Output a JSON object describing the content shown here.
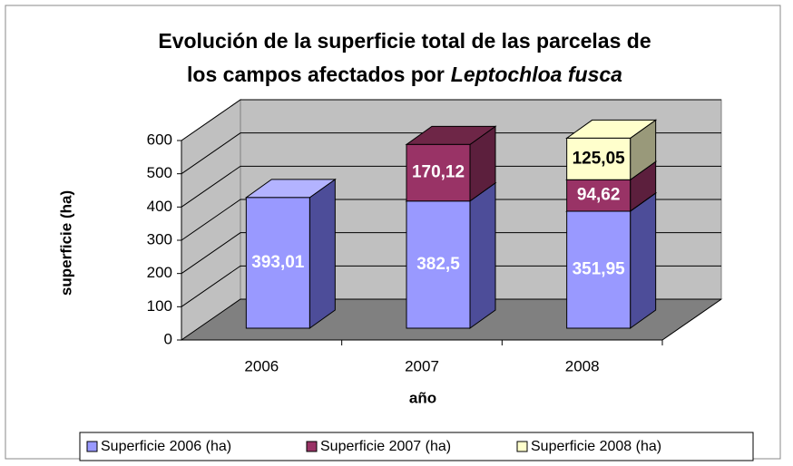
{
  "chart_data": {
    "type": "bar3d_stacked",
    "title_lines": [
      "Evolución de la superficie total de las parcelas de",
      "los campos afectados por",
      "Leptochloa fusca"
    ],
    "xlabel": "año",
    "ylabel": "superficie (ha)",
    "categories": [
      "2006",
      "2007",
      "2008"
    ],
    "series": [
      {
        "name": "Superficie 2006 (ha)",
        "color": "#9999ff",
        "side": "#4d4d99",
        "top": "#b3b3ff",
        "label_color": "#ffffff",
        "values": [
          393.01,
          382.5,
          351.95
        ],
        "value_labels": [
          "393,01",
          "382,5",
          "351,95"
        ]
      },
      {
        "name": "Superficie 2007 (ha)",
        "color": "#993366",
        "side": "#5c1f3d",
        "top": "#6e2647",
        "label_color": "#ffffff",
        "values": [
          null,
          170.12,
          94.62
        ],
        "value_labels": [
          null,
          "170,12",
          "94,62"
        ]
      },
      {
        "name": "Superficie 2008 (ha)",
        "color": "#ffffcc",
        "side": "#99997a",
        "top": "#ffffcc",
        "label_color": "#000000",
        "values": [
          null,
          null,
          125.05
        ],
        "value_labels": [
          null,
          null,
          "125,05"
        ]
      }
    ],
    "ylim": [
      0,
      600
    ],
    "yticks": [
      0,
      100,
      200,
      300,
      400,
      500,
      600
    ],
    "grid": true
  }
}
